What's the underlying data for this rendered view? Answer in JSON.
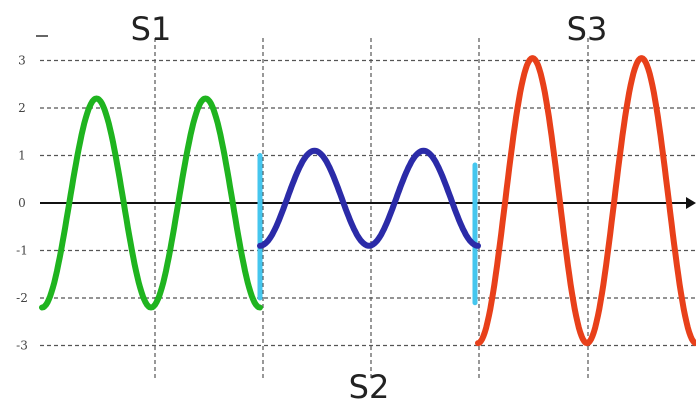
{
  "chart_data": {
    "type": "line",
    "title": "",
    "xlabel": "",
    "ylabel": "",
    "ylim": [
      -3,
      3
    ],
    "y_ticks": [
      "3",
      "2",
      "1",
      "0",
      "-1",
      "-2",
      "-3"
    ],
    "grid": true,
    "grid_style": "dashed",
    "segments": [
      {
        "label": "S1",
        "color": "#1fb41f",
        "amplitude": 2.2,
        "center": 0,
        "x_start": 0.0,
        "x_end": 1.0,
        "cycles": 2
      },
      {
        "label": "S2",
        "color": "#2b2ba8",
        "amplitude": 1.0,
        "center": 0.1,
        "x_start": 1.0,
        "x_end": 2.0,
        "cycles": 2
      },
      {
        "label": "S3",
        "color": "#e8401a",
        "amplitude": 3.0,
        "center": 0.05,
        "x_start": 2.0,
        "x_end": 3.0,
        "cycles": 2
      }
    ],
    "transitions": [
      {
        "x": 1.0,
        "y_from": -2.0,
        "y_to": 1.0,
        "color": "#45c6ee"
      },
      {
        "x": 2.0,
        "y_from": 0.8,
        "y_to": -2.1,
        "color": "#45c6ee"
      }
    ]
  }
}
